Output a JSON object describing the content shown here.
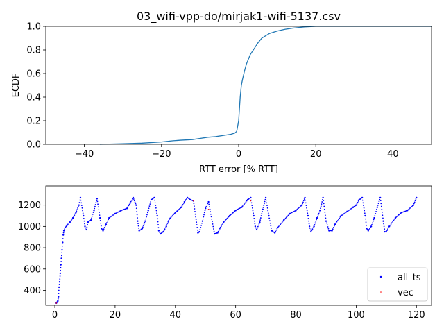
{
  "chart_data": [
    {
      "type": "line",
      "title": "03_wifi-vpp-do/mirjak1-wifi-5137.csv",
      "xlabel": "RTT error [% RTT]",
      "ylabel": "ECDF",
      "xlim": [
        -50,
        50
      ],
      "ylim": [
        0,
        1
      ],
      "xticks": [
        -40,
        -20,
        0,
        20,
        40
      ],
      "yticks": [
        0.0,
        0.2,
        0.4,
        0.6,
        0.8,
        1.0
      ],
      "ytick_labels": [
        "0.0",
        "0.2",
        "0.4",
        "0.6",
        "0.8",
        "1.0"
      ],
      "grid": false,
      "color": "#1f77b4",
      "series": [
        {
          "x": [
            -36,
            -30,
            -25,
            -20,
            -17,
            -15,
            -12,
            -10,
            -8,
            -6,
            -4,
            -2,
            -1,
            -0.5,
            0,
            0.2,
            0.4,
            0.7,
            1,
            1.5,
            2,
            2.5,
            3,
            4,
            5,
            6,
            7,
            8,
            10,
            12,
            14,
            17,
            20,
            30,
            50
          ],
          "y": [
            0,
            0.005,
            0.01,
            0.02,
            0.03,
            0.035,
            0.04,
            0.05,
            0.06,
            0.065,
            0.075,
            0.085,
            0.095,
            0.11,
            0.2,
            0.3,
            0.4,
            0.5,
            0.55,
            0.62,
            0.68,
            0.72,
            0.76,
            0.81,
            0.86,
            0.9,
            0.92,
            0.94,
            0.96,
            0.975,
            0.985,
            0.995,
            1.0,
            1.0,
            1.0
          ]
        }
      ]
    },
    {
      "type": "scatter",
      "xlim": [
        -3,
        125
      ],
      "ylim": [
        260,
        1380
      ],
      "xticks": [
        0,
        20,
        40,
        60,
        80,
        100,
        120
      ],
      "yticks": [
        400,
        600,
        800,
        1000,
        1200
      ],
      "grid": false,
      "legend_position": "lower-right",
      "series": [
        {
          "name": "all_ts",
          "color": "#0000ff",
          "marker": "dot",
          "points": [
            [
              0.5,
              280
            ],
            [
              0.8,
              290
            ],
            [
              1.0,
              300
            ],
            [
              1.2,
              340
            ],
            [
              1.4,
              430
            ],
            [
              1.6,
              480
            ],
            [
              1.8,
              560
            ],
            [
              2.0,
              640
            ],
            [
              2.2,
              700
            ],
            [
              2.4,
              780
            ],
            [
              2.6,
              850
            ],
            [
              2.8,
              920
            ],
            [
              3.0,
              960
            ],
            [
              3.5,
              990
            ],
            [
              4,
              1010
            ],
            [
              5,
              1040
            ],
            [
              6,
              1080
            ],
            [
              7,
              1130
            ],
            [
              8,
              1200
            ],
            [
              8.5,
              1270
            ],
            [
              9.5,
              1100
            ],
            [
              10,
              1000
            ],
            [
              10.5,
              970
            ],
            [
              11,
              1040
            ],
            [
              12,
              1060
            ],
            [
              13,
              1150
            ],
            [
              14,
              1260
            ],
            [
              15,
              1080
            ],
            [
              15.5,
              980
            ],
            [
              16,
              960
            ],
            [
              17,
              1020
            ],
            [
              18,
              1080
            ],
            [
              20,
              1120
            ],
            [
              22,
              1150
            ],
            [
              24,
              1170
            ],
            [
              25,
              1220
            ],
            [
              26,
              1270
            ],
            [
              27,
              1200
            ],
            [
              27.5,
              1050
            ],
            [
              28,
              960
            ],
            [
              29,
              980
            ],
            [
              30,
              1050
            ],
            [
              31,
              1150
            ],
            [
              32,
              1250
            ],
            [
              33,
              1270
            ],
            [
              34,
              1100
            ],
            [
              34.5,
              960
            ],
            [
              35,
              930
            ],
            [
              36,
              950
            ],
            [
              37,
              1000
            ],
            [
              38,
              1070
            ],
            [
              40,
              1130
            ],
            [
              42,
              1180
            ],
            [
              43,
              1230
            ],
            [
              44,
              1270
            ],
            [
              45,
              1250
            ],
            [
              46,
              1240
            ],
            [
              47.5,
              940
            ],
            [
              48,
              950
            ],
            [
              49,
              1050
            ],
            [
              50,
              1170
            ],
            [
              51,
              1230
            ],
            [
              53,
              930
            ],
            [
              54,
              940
            ],
            [
              55,
              990
            ],
            [
              56,
              1040
            ],
            [
              58,
              1100
            ],
            [
              60,
              1150
            ],
            [
              62,
              1180
            ],
            [
              64,
              1250
            ],
            [
              65,
              1270
            ],
            [
              66,
              1100
            ],
            [
              66.5,
              1000
            ],
            [
              67,
              970
            ],
            [
              68,
              1040
            ],
            [
              69,
              1160
            ],
            [
              70,
              1270
            ],
            [
              71,
              1100
            ],
            [
              72,
              960
            ],
            [
              73,
              940
            ],
            [
              74,
              990
            ],
            [
              76,
              1060
            ],
            [
              78,
              1120
            ],
            [
              80,
              1150
            ],
            [
              82,
              1200
            ],
            [
              83,
              1270
            ],
            [
              84,
              1100
            ],
            [
              84.5,
              1000
            ],
            [
              85,
              950
            ],
            [
              86,
              1000
            ],
            [
              87,
              1080
            ],
            [
              88,
              1150
            ],
            [
              89,
              1270
            ],
            [
              90,
              1050
            ],
            [
              91,
              960
            ],
            [
              92,
              960
            ],
            [
              93,
              1020
            ],
            [
              95,
              1100
            ],
            [
              97,
              1140
            ],
            [
              99,
              1180
            ],
            [
              100,
              1200
            ],
            [
              101,
              1250
            ],
            [
              102,
              1270
            ],
            [
              103,
              1100
            ],
            [
              103.5,
              980
            ],
            [
              104,
              960
            ],
            [
              105,
              1000
            ],
            [
              106,
              1080
            ],
            [
              107,
              1180
            ],
            [
              108,
              1270
            ],
            [
              109,
              1050
            ],
            [
              109.5,
              950
            ],
            [
              110,
              950
            ],
            [
              111,
              1000
            ],
            [
              113,
              1080
            ],
            [
              115,
              1130
            ],
            [
              117,
              1150
            ],
            [
              119,
              1200
            ],
            [
              120,
              1270
            ]
          ]
        },
        {
          "name": "vec",
          "color": "#ff0000",
          "marker": "dot",
          "points": [
            [
              0.5,
              280
            ],
            [
              46,
              1240
            ],
            [
              51,
              1160
            ],
            [
              65,
              1240
            ]
          ]
        }
      ]
    }
  ]
}
